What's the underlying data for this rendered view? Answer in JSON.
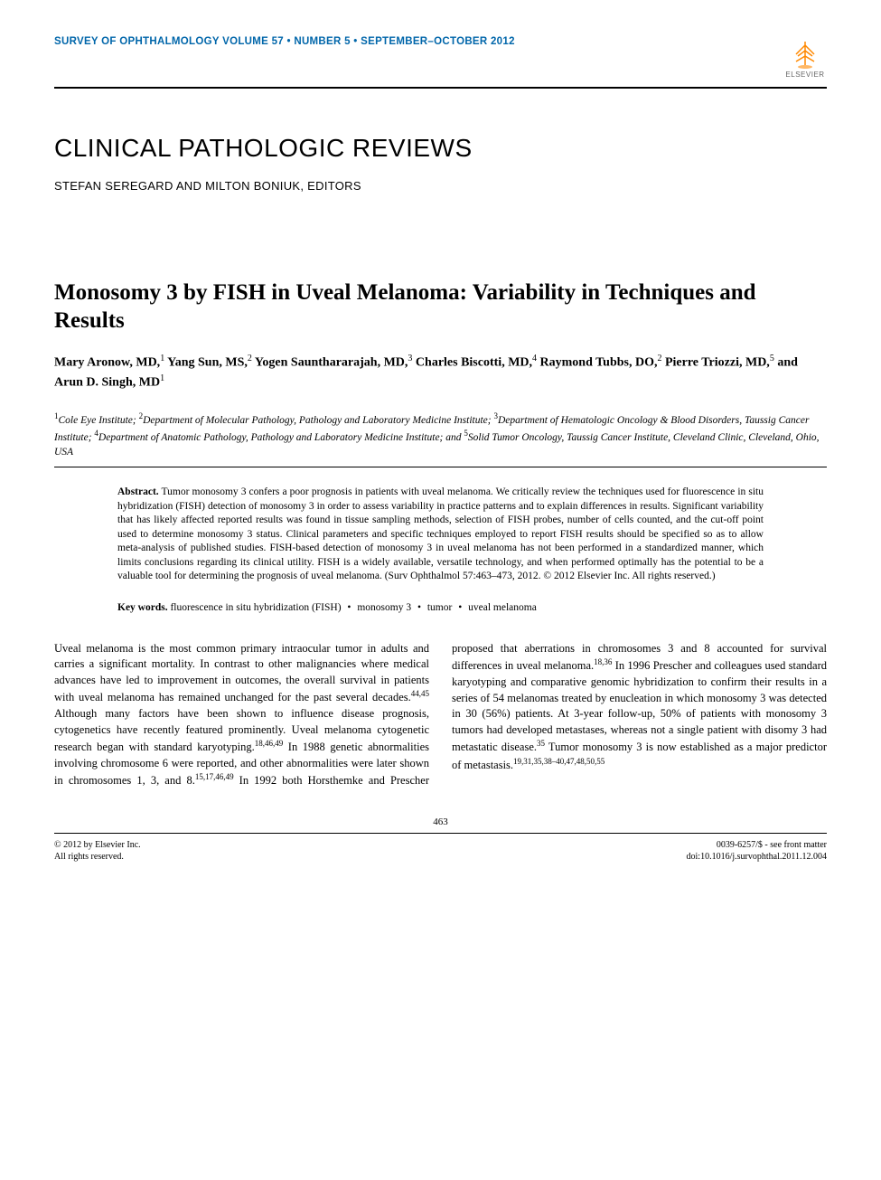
{
  "journal": {
    "name": "SURVEY OF OPHTHALMOLOGY",
    "volume": "VOLUME 57",
    "number": "NUMBER 5",
    "date": "SEPTEMBER–OCTOBER 2012"
  },
  "publisher": {
    "name": "ELSEVIER",
    "logo_color": "#ff8800",
    "text_color": "#888888"
  },
  "colors": {
    "header_blue": "#0066aa",
    "text": "#000000",
    "background": "#ffffff"
  },
  "section": {
    "heading": "CLINICAL PATHOLOGIC REVIEWS",
    "editors": "STEFAN SEREGARD AND MILTON BONIUK, EDITORS"
  },
  "article": {
    "title": "Monosomy 3 by FISH in Uveal Melanoma: Variability in Techniques and Results",
    "authors_html": "Mary Aronow, MD,<sup>1</sup> Yang Sun, MS,<sup>2</sup> Yogen Saunthararajah, MD,<sup>3</sup> Charles Biscotti, MD,<sup>4</sup> Raymond Tubbs, DO,<sup>2</sup> Pierre Triozzi, MD,<sup>5</sup> and Arun D. Singh, MD<sup>1</sup>",
    "affiliations_html": "<sup>1</sup>Cole Eye Institute; <sup>2</sup>Department of Molecular Pathology, Pathology and Laboratory Medicine Institute; <sup>3</sup>Department of Hematologic Oncology &amp; Blood Disorders, Taussig Cancer Institute; <sup>4</sup>Department of Anatomic Pathology, Pathology and Laboratory Medicine Institute; and <sup>5</sup>Solid Tumor Oncology, Taussig Cancer Institute, Cleveland Clinic, Cleveland, Ohio, USA"
  },
  "abstract": {
    "label": "Abstract.",
    "text": "Tumor monosomy 3 confers a poor prognosis in patients with uveal melanoma. We critically review the techniques used for fluorescence in situ hybridization (FISH) detection of monosomy 3 in order to assess variability in practice patterns and to explain differences in results. Significant variability that has likely affected reported results was found in tissue sampling methods, selection of FISH probes, number of cells counted, and the cut-off point used to determine monosomy 3 status. Clinical parameters and specific techniques employed to report FISH results should be specified so as to allow meta-analysis of published studies. FISH-based detection of monosomy 3 in uveal melanoma has not been performed in a standardized manner, which limits conclusions regarding its clinical utility. FISH is a widely available, versatile technology, and when performed optimally has the potential to be a valuable tool for determining the prognosis of uveal melanoma. (Surv Ophthalmol 57:463–473, 2012. © 2012 Elsevier Inc. All rights reserved.)"
  },
  "keywords": {
    "label": "Key words.",
    "items": [
      "fluorescence in situ hybridization (FISH)",
      "monosomy 3",
      "tumor",
      "uveal melanoma"
    ]
  },
  "body": {
    "col1_html": "Uveal melanoma is the most common primary intraocular tumor in adults and carries a significant mortality. In contrast to other malignancies where medical advances have led to improvement in outcomes, the overall survival in patients with uveal melanoma has remained unchanged for the past several decades.<sup>44,45</sup> Although many factors have been shown to influence disease prognosis, cytogenetics have recently featured prominently. Uveal melanoma cytogenetic research began with standard karyotyping.<sup>18,46,49</sup> In 1988 genetic abnormalities involving chromosome 6 were reported, and other abnormalities were later shown in chromosomes 1, 3, and 8.<sup>15,17,46,49</sup> In 1992 both Horsthemke and Prescher proposed that aberrations in chromosomes 3 and 8 accounted for survival differences in uveal melanoma.<sup>18,36</sup> In 1996 Prescher and colleagues used standard karyotyping and comparative genomic hybridization to confirm their results in a series of 54 melanomas treated by enucleation in which monosomy 3 was detected in 30 (56%) patients. At 3-year follow-up, 50% of patients with monosomy 3 tumors had developed metastases, whereas not a single patient with disomy 3 had metastatic disease.<sup>35</sup> Tumor monosomy 3 is now established as a major predictor of metastasis.<sup>19,31,35,38–40,47,48,50,55</sup>"
  },
  "page_number": "463",
  "footer": {
    "left_line1": "© 2012 by Elsevier Inc.",
    "left_line2": "All rights reserved.",
    "right_line1": "0039-6257/$ - see front matter",
    "right_line2": "doi:10.1016/j.survophthal.2011.12.004"
  }
}
